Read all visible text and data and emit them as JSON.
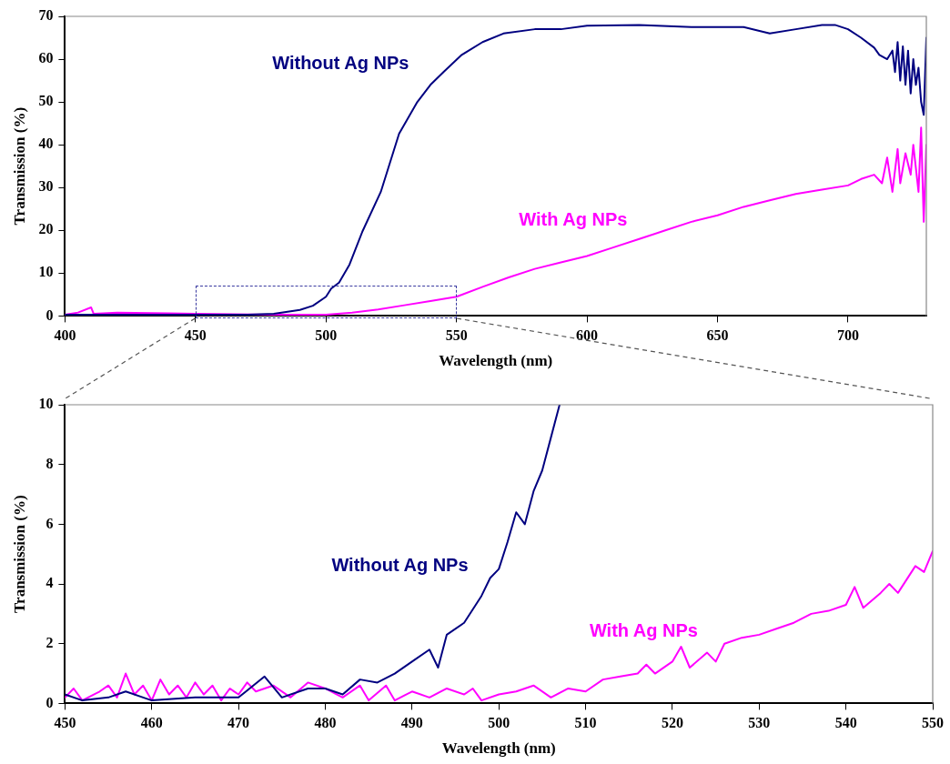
{
  "chart_data": [
    {
      "type": "line",
      "xlabel": "Wavelength (nm)",
      "ylabel": "Transmission (%)",
      "xlim": [
        400,
        730
      ],
      "xticks": [
        400,
        450,
        500,
        550,
        600,
        650,
        700
      ],
      "ylim": [
        0,
        70
      ],
      "yticks": [
        0,
        10,
        20,
        30,
        40,
        50,
        60,
        70
      ],
      "grid": false,
      "legend": false,
      "marker": "none",
      "line_style": "solid",
      "x": [
        400,
        450,
        470,
        480,
        490,
        495,
        500,
        502,
        505,
        509,
        514,
        521,
        528,
        535,
        540,
        545,
        552,
        560,
        568,
        580,
        590,
        600,
        620,
        640,
        660,
        670,
        680,
        690,
        695,
        700,
        705,
        710,
        712,
        715,
        717,
        718,
        719,
        720,
        721,
        722,
        723,
        724,
        725,
        726,
        727,
        728,
        729,
        730
      ],
      "series": [
        {
          "name": "Without Ag NPs",
          "color": "#000080",
          "values": [
            0.3,
            0.3,
            0.3,
            0.5,
            1.4,
            2.4,
            4.5,
            6.4,
            7.8,
            12,
            19.8,
            29,
            42.6,
            50,
            54,
            57,
            61,
            64,
            66,
            67,
            67,
            67.8,
            68,
            67.5,
            67.5,
            66,
            67,
            68,
            68,
            67,
            65,
            62.7,
            61,
            60,
            62,
            57,
            64,
            55,
            63,
            54,
            62,
            52,
            60,
            54,
            58,
            50,
            47,
            65
          ]
        },
        {
          "name": "With Ag NPs",
          "color": "#ff00ff",
          "x": [
            400,
            405,
            410,
            411,
            420,
            440,
            450,
            480,
            500,
            510,
            520,
            530,
            540,
            550,
            560,
            570,
            580,
            590,
            600,
            610,
            620,
            630,
            640,
            650,
            660,
            670,
            680,
            690,
            700,
            705,
            710,
            713,
            715,
            717,
            719,
            720,
            722,
            724,
            725,
            727,
            728,
            729,
            730
          ],
          "values": [
            0.3,
            0.8,
            2,
            0.5,
            0.8,
            0.6,
            0.5,
            0.3,
            0.3,
            0.8,
            1.5,
            2.5,
            3.5,
            4.5,
            6.8,
            9,
            11,
            12.5,
            14,
            16,
            18,
            20,
            22,
            23.5,
            25.5,
            27,
            28.5,
            29.5,
            30.5,
            32,
            33,
            31,
            37,
            29,
            39,
            31,
            38,
            33,
            40,
            29,
            44,
            22,
            40
          ]
        }
      ]
    },
    {
      "type": "line",
      "xlabel": "Wavelength (nm)",
      "ylabel": "Transmission (%)",
      "xlim": [
        450,
        550
      ],
      "xticks": [
        450,
        460,
        470,
        480,
        490,
        500,
        510,
        520,
        530,
        540,
        550
      ],
      "ylim": [
        0,
        10
      ],
      "yticks": [
        0,
        2,
        4,
        6,
        8,
        10
      ],
      "grid": false,
      "legend": false,
      "marker": "none",
      "line_style": "solid",
      "series": [
        {
          "name": "Without Ag NPs",
          "color": "#000080",
          "x": [
            450,
            452,
            455,
            457,
            460,
            465,
            470,
            473,
            475,
            478,
            480,
            482,
            484,
            486,
            488,
            490,
            492,
            493,
            494,
            496,
            498,
            499,
            500,
            501,
            502,
            503,
            504,
            505,
            506,
            507
          ],
          "values": [
            0.3,
            0.1,
            0.2,
            0.4,
            0.1,
            0.2,
            0.2,
            0.9,
            0.2,
            0.5,
            0.5,
            0.3,
            0.8,
            0.7,
            1.0,
            1.4,
            1.8,
            1.2,
            2.3,
            2.7,
            3.6,
            4.2,
            4.5,
            5.4,
            6.4,
            6.0,
            7.1,
            7.8,
            8.9,
            10
          ]
        },
        {
          "name": "With Ag NPs",
          "color": "#ff00ff",
          "x": [
            450,
            451,
            452,
            454,
            455,
            456,
            457,
            458,
            459,
            460,
            461,
            462,
            463,
            464,
            465,
            466,
            467,
            468,
            469,
            470,
            471,
            472,
            474,
            476,
            478,
            480,
            482,
            484,
            485,
            487,
            488,
            490,
            492,
            494,
            496,
            497,
            498,
            500,
            502,
            504,
            506,
            508,
            510,
            512,
            514,
            516,
            517,
            518,
            520,
            521,
            522,
            524,
            525,
            526,
            528,
            530,
            532,
            534,
            536,
            538,
            540,
            541,
            542,
            544,
            545,
            546,
            548,
            549,
            550
          ],
          "values": [
            0.2,
            0.5,
            0.1,
            0.4,
            0.6,
            0.2,
            1.0,
            0.3,
            0.6,
            0.1,
            0.8,
            0.3,
            0.6,
            0.2,
            0.7,
            0.3,
            0.6,
            0.1,
            0.5,
            0.3,
            0.7,
            0.4,
            0.6,
            0.2,
            0.7,
            0.5,
            0.2,
            0.6,
            0.1,
            0.6,
            0.1,
            0.4,
            0.2,
            0.5,
            0.3,
            0.5,
            0.1,
            0.3,
            0.4,
            0.6,
            0.2,
            0.5,
            0.4,
            0.8,
            0.9,
            1.0,
            1.3,
            1.0,
            1.4,
            1.9,
            1.2,
            1.7,
            1.4,
            2.0,
            2.2,
            2.3,
            2.5,
            2.7,
            3.0,
            3.1,
            3.3,
            3.9,
            3.2,
            3.7,
            4.0,
            3.7,
            4.6,
            4.4,
            5.1
          ]
        }
      ]
    }
  ]
}
